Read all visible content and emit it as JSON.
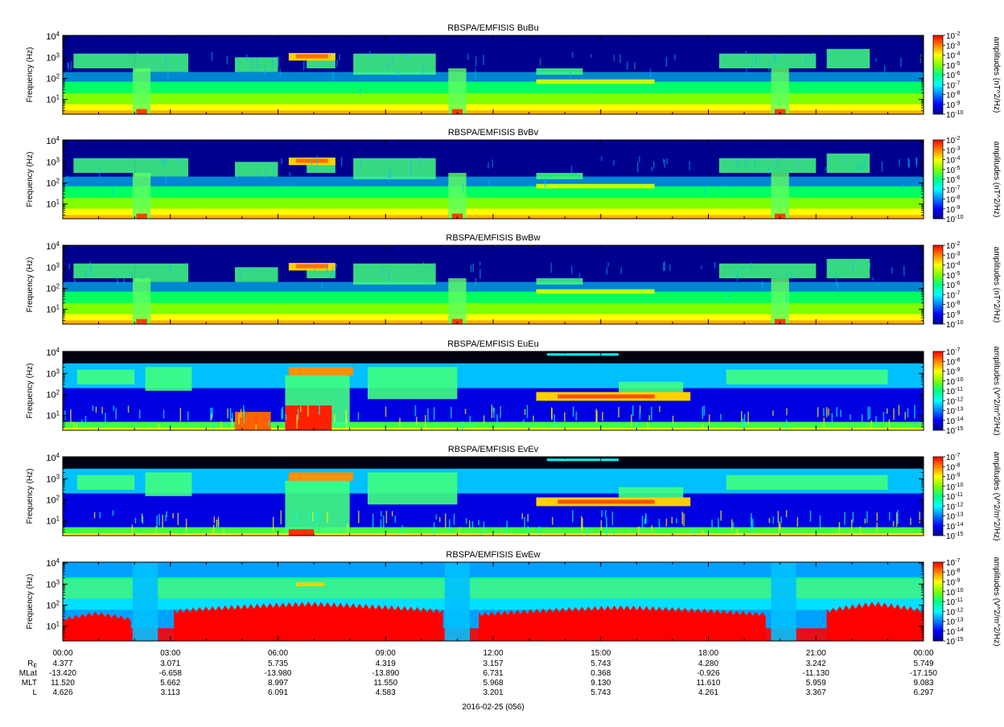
{
  "chart_data": {
    "type": "heatmap",
    "title": "",
    "panels": [
      {
        "title": "RBSPA/EMFISIS  BuBu",
        "ylabel": "Frequency (Hz)",
        "cbar_label": "amplitudes (nT^2/Hz)",
        "cbar_ticks": [
          "10^-2",
          "10^-3",
          "10^-4",
          "10^-5",
          "10^-6",
          "10^-7",
          "10^-8",
          "10^-9",
          "10^-10"
        ],
        "ylim": [
          2,
          11000
        ],
        "yscale": "log"
      },
      {
        "title": "RBSPA/EMFISIS  BvBv",
        "ylabel": "Frequency (Hz)",
        "cbar_label": "amplitudes (nT^2/Hz)",
        "cbar_ticks": [
          "10^-2",
          "10^-3",
          "10^-4",
          "10^-5",
          "10^-6",
          "10^-7",
          "10^-8",
          "10^-9",
          "10^-10"
        ],
        "ylim": [
          2,
          11000
        ],
        "yscale": "log"
      },
      {
        "title": "RBSPA/EMFISIS  BwBw",
        "ylabel": "Frequency (Hz)",
        "cbar_label": "amplitudes (nT^2/Hz)",
        "cbar_ticks": [
          "10^-2",
          "10^-3",
          "10^-4",
          "10^-5",
          "10^-6",
          "10^-7",
          "10^-8",
          "10^-9",
          "10^-10"
        ],
        "ylim": [
          2,
          11000
        ],
        "yscale": "log"
      },
      {
        "title": "RBSPA/EMFISIS  EuEu",
        "ylabel": "Frequency (Hz)",
        "cbar_label": "amplitudes (V^2/m^2/Hz)",
        "cbar_ticks": [
          "10^-7",
          "10^-8",
          "10^-9",
          "10^-10",
          "10^-11",
          "10^-12",
          "10^-13",
          "10^-14",
          "10^-15"
        ],
        "ylim": [
          2,
          11000
        ],
        "yscale": "log"
      },
      {
        "title": "RBSPA/EMFISIS  EvEv",
        "ylabel": "Frequency (Hz)",
        "cbar_label": "amplitudes (V^2/m^2/Hz)",
        "cbar_ticks": [
          "10^-7",
          "10^-8",
          "10^-9",
          "10^-10",
          "10^-11",
          "10^-12",
          "10^-13",
          "10^-14",
          "10^-15"
        ],
        "ylim": [
          2,
          11000
        ],
        "yscale": "log"
      },
      {
        "title": "RBSPA/EMFISIS  EwEw",
        "ylabel": "Frequency (Hz)",
        "cbar_label": "amplitudes (V^2/m^2/Hz)",
        "cbar_ticks": [
          "10^-7",
          "10^-8",
          "10^-9",
          "10^-10",
          "10^-11",
          "10^-12",
          "10^-13",
          "10^-14",
          "10^-15"
        ],
        "ylim": [
          2,
          11000
        ],
        "yscale": "log"
      }
    ],
    "y_tick_values": [
      10000,
      1000,
      100,
      10
    ],
    "y_tick_labels": [
      "10^4",
      "10^3",
      "10^2",
      "10^1"
    ],
    "x_tick_labels": [
      "00:00",
      "03:00",
      "06:00",
      "09:00",
      "12:00",
      "15:00",
      "18:00",
      "21:00",
      "00:00"
    ],
    "ephemeris": {
      "labels": [
        "RE",
        "MLat",
        "MLT",
        "L"
      ],
      "rows": [
        [
          "4.377",
          "3.071",
          "5.735",
          "4.319",
          "3.157",
          "5.743",
          "4.280",
          "3.242",
          "5.749"
        ],
        [
          "-13.420",
          "-6.658",
          "-13.980",
          "-13.890",
          "6.731",
          "0.368",
          "-0.926",
          "-11.130",
          "-17.150"
        ],
        [
          "11.520",
          "5.662",
          "8.997",
          "11.550",
          "5.968",
          "9.130",
          "11.610",
          "5.959",
          "9.083"
        ],
        [
          "4.626",
          "3.113",
          "6.091",
          "4.583",
          "3.201",
          "5.743",
          "4.261",
          "3.367",
          "6.297"
        ]
      ]
    },
    "xlabel": "2016-02-25 (056)",
    "colormap": [
      "#00008f",
      "#0000ff",
      "#0080ff",
      "#00ffff",
      "#00ff80",
      "#80ff00",
      "#ffff00",
      "#ff8000",
      "#ff0000"
    ]
  }
}
